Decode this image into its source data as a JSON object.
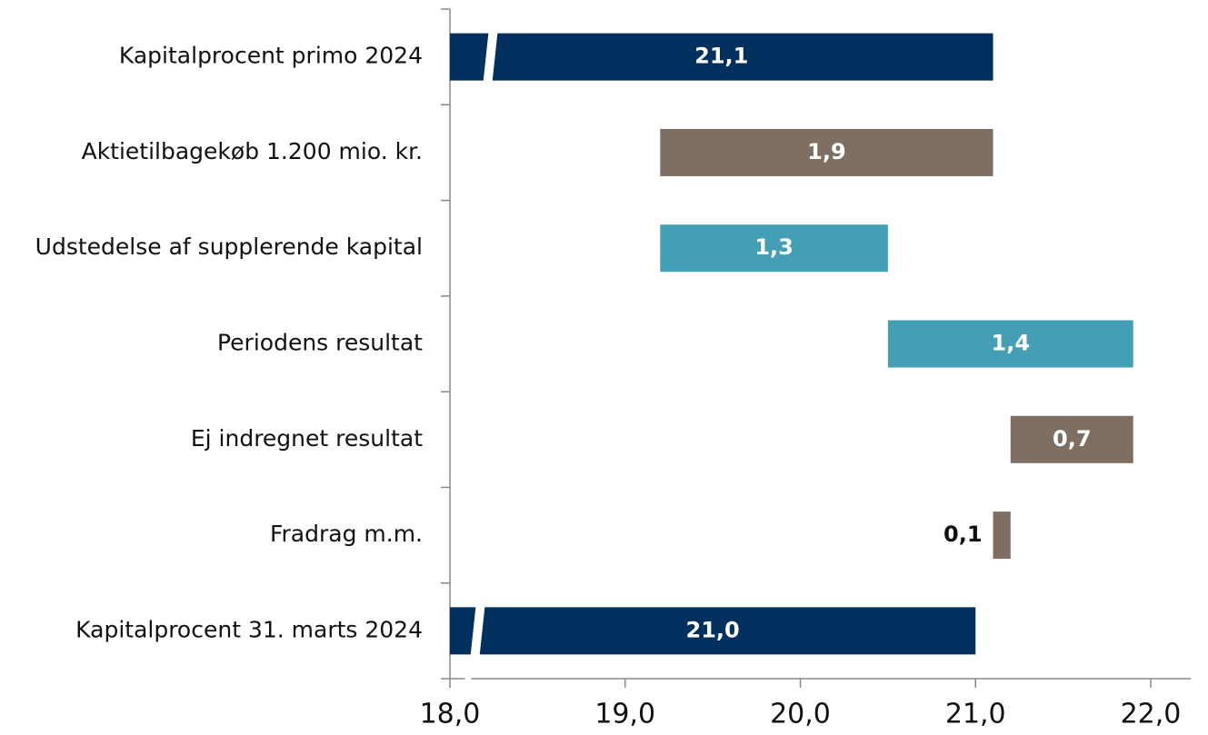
{
  "chart_data": {
    "type": "waterfall",
    "categories": [
      "Kapitalprocent primo 2024",
      "Aktietilbagekøb 1.200 mio. kr.",
      "Udstedelse af supplerende kapital",
      "Periodens resultat",
      "Ej indregnet resultat",
      "Fradrag m.m.",
      "Kapitalprocent 31. marts 2024"
    ],
    "values": [
      21.1,
      -1.9,
      1.3,
      1.4,
      -0.7,
      -0.1,
      21.0
    ],
    "value_labels": [
      "21,1",
      "1,9",
      "1,3",
      "1,4",
      "0,7",
      "0,1",
      "21,0"
    ],
    "totals": [
      true,
      false,
      false,
      false,
      false,
      false,
      true
    ],
    "colors": {
      "total": "#00305e",
      "increase": "#429fb4",
      "decrease": "#7f6f63"
    },
    "xlim": [
      18,
      22
    ],
    "xticks": [
      {
        "value": 18,
        "label": "18,0"
      },
      {
        "value": 19,
        "label": "19,0"
      },
      {
        "value": 20,
        "label": "20,0"
      },
      {
        "value": 21,
        "label": "21,0"
      },
      {
        "value": 22,
        "label": "22,0"
      }
    ],
    "axis_break": true
  }
}
